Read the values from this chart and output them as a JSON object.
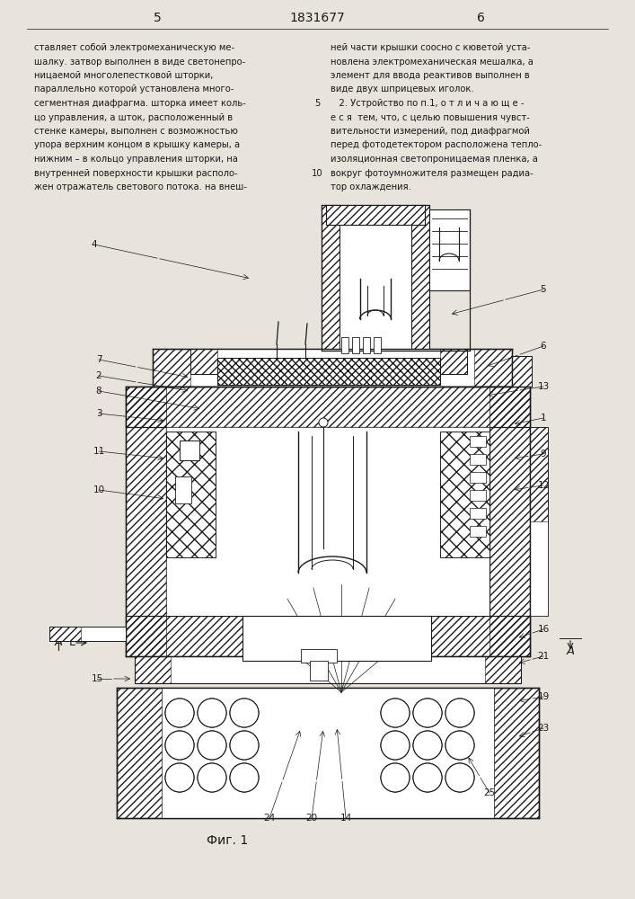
{
  "page_num_left": "5",
  "patent_number": "1831677",
  "page_num_right": "6",
  "fig_caption": "Фиг. 1",
  "text_left": "ставляет собой электромеханическую ме-\nшалку. затвор выполнен в виде светонепро-\nницаемой многолепестковой шторки,\nпараллельно которой установлена много-\nсегментная диафрагма. шторка имеет коль-\nцо управления, а шток, расположенный в\nстенке камеры, выполнен с возможностью\nупора верхним концом в крышку камеры, а\nнижним – в кольцо управления шторки, на\nвнутренней поверхности крышки располо-\nжен отражатель светового потока. на внеш-",
  "text_right": "ней части крышки соосно с кюветой уста-\nновлена электромеханическая мешалка, а\nэлемент для ввода реактивов выполнен в\nвиде двух шприцевых иголок.\n   2. Устройство по п.1, о т л и ч а ю щ е -\nе с я  тем, что, с целью повышения чувст-\nвительности измерений, под диафрагмой\nперед фотодетектором расположена тепло-\nизоляционная светопроницаемая пленка, а\nвокруг фотоумножителя размещен радиа-\nтор охлаждения.",
  "bg_color": "#e8e4dc",
  "text_color": "#1a1a1a",
  "line_color": "#1a1a1a"
}
